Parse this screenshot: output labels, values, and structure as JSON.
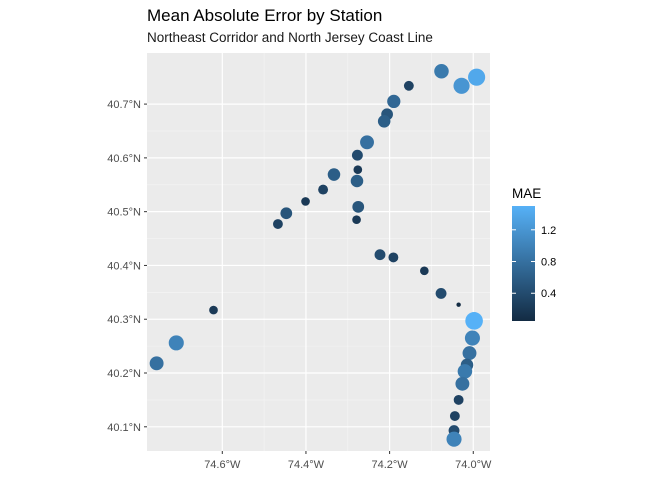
{
  "chart_data": {
    "type": "scatter",
    "title": "Mean Absolute Error by Station",
    "subtitle": "Northeast Corridor and North Jersey Coast Line",
    "xlabel": "",
    "ylabel": "",
    "xlim": [
      -74.78,
      -73.96
    ],
    "ylim": [
      40.055,
      40.795
    ],
    "x_ticks": [
      -74.6,
      -74.4,
      -74.2,
      -74.0
    ],
    "x_tick_labels": [
      "74.6°W",
      "74.4°W",
      "74.2°W",
      "74.0°W"
    ],
    "y_ticks": [
      40.1,
      40.2,
      40.3,
      40.4,
      40.5,
      40.6,
      40.7
    ],
    "y_tick_labels": [
      "40.1°N",
      "40.2°N",
      "40.3°N",
      "40.4°N",
      "40.5°N",
      "40.6°N",
      "40.7°N"
    ],
    "grid": true,
    "legend": {
      "title": "MAE",
      "placement": "right",
      "min": 0.05,
      "max": 1.5,
      "ticks": [
        0.4,
        0.8,
        1.2
      ],
      "tick_labels": [
        "0.4",
        "0.8",
        "1.2"
      ],
      "color_low": "#132B43",
      "color_high": "#56B1F7"
    },
    "points": [
      {
        "lon": -74.076,
        "lat": 40.761,
        "mae": 0.9
      },
      {
        "lon": -74.154,
        "lat": 40.734,
        "mae": 0.3
      },
      {
        "lon": -74.028,
        "lat": 40.734,
        "mae": 1.2
      },
      {
        "lon": -73.992,
        "lat": 40.75,
        "mae": 1.4
      },
      {
        "lon": -74.19,
        "lat": 40.705,
        "mae": 0.7
      },
      {
        "lon": -74.206,
        "lat": 40.681,
        "mae": 0.5
      },
      {
        "lon": -74.213,
        "lat": 40.668,
        "mae": 0.6
      },
      {
        "lon": -74.254,
        "lat": 40.629,
        "mae": 0.8
      },
      {
        "lon": -74.277,
        "lat": 40.605,
        "mae": 0.4
      },
      {
        "lon": -74.276,
        "lat": 40.578,
        "mae": 0.2
      },
      {
        "lon": -74.278,
        "lat": 40.557,
        "mae": 0.6
      },
      {
        "lon": -74.333,
        "lat": 40.569,
        "mae": 0.6
      },
      {
        "lon": -74.359,
        "lat": 40.541,
        "mae": 0.3
      },
      {
        "lon": -74.401,
        "lat": 40.519,
        "mae": 0.2
      },
      {
        "lon": -74.447,
        "lat": 40.497,
        "mae": 0.5
      },
      {
        "lon": -74.467,
        "lat": 40.477,
        "mae": 0.3
      },
      {
        "lon": -74.275,
        "lat": 40.509,
        "mae": 0.5
      },
      {
        "lon": -74.279,
        "lat": 40.485,
        "mae": 0.2
      },
      {
        "lon": -74.223,
        "lat": 40.42,
        "mae": 0.4
      },
      {
        "lon": -74.191,
        "lat": 40.415,
        "mae": 0.3
      },
      {
        "lon": -74.117,
        "lat": 40.39,
        "mae": 0.2
      },
      {
        "lon": -74.077,
        "lat": 40.348,
        "mae": 0.4
      },
      {
        "lon": -74.035,
        "lat": 40.327,
        "mae": 0.05
      },
      {
        "lon": -73.998,
        "lat": 40.297,
        "mae": 1.5
      },
      {
        "lon": -74.002,
        "lat": 40.265,
        "mae": 1.0
      },
      {
        "lon": -74.009,
        "lat": 40.237,
        "mae": 0.8
      },
      {
        "lon": -74.015,
        "lat": 40.215,
        "mae": 0.6
      },
      {
        "lon": -74.02,
        "lat": 40.203,
        "mae": 0.9
      },
      {
        "lon": -74.026,
        "lat": 40.18,
        "mae": 0.8
      },
      {
        "lon": -74.035,
        "lat": 40.15,
        "mae": 0.3
      },
      {
        "lon": -74.044,
        "lat": 40.12,
        "mae": 0.3
      },
      {
        "lon": -74.046,
        "lat": 40.093,
        "mae": 0.4
      },
      {
        "lon": -74.046,
        "lat": 40.077,
        "mae": 1.0
      },
      {
        "lon": -74.621,
        "lat": 40.317,
        "mae": 0.2
      },
      {
        "lon": -74.71,
        "lat": 40.256,
        "mae": 1.0
      },
      {
        "lon": -74.757,
        "lat": 40.218,
        "mae": 0.8
      }
    ]
  }
}
